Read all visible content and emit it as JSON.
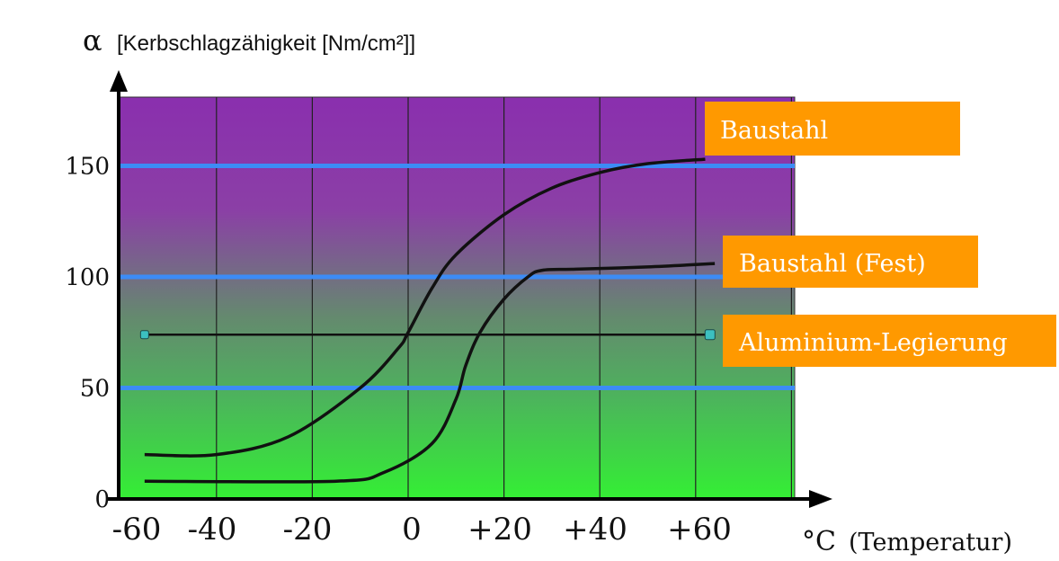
{
  "chart_data": {
    "type": "line",
    "ylabel_symbol": "α",
    "ylabel": "[Kerbschlagzähigkeit [Nm/cm²]]",
    "xlabel_unit": "°C",
    "xlabel": "(Temperatur)",
    "x_ticks": [
      "-60",
      "-40",
      "-20",
      "0",
      "+20",
      "+40",
      "+60"
    ],
    "y_ticks": [
      "0",
      "50",
      "100",
      "150"
    ],
    "xlim": [
      -60,
      80
    ],
    "ylim": [
      0,
      180
    ],
    "y_gridlines": [
      50,
      100,
      150
    ],
    "grid": true,
    "colors": {
      "background_top": "#8a2fae",
      "background_bottom": "#34ef34",
      "gridline": "#3c8cf5",
      "vertical_grid": "#222222",
      "curve": "#111111",
      "label_box": "#ff9900",
      "marker": "#3cc0c0"
    },
    "series": [
      {
        "name": "Baustahl",
        "x": [
          -55,
          -40,
          -25,
          -10,
          -2,
          0,
          5,
          10,
          20,
          30,
          40,
          50,
          62
        ],
        "y": [
          20,
          20,
          28,
          50,
          68,
          75,
          95,
          110,
          128,
          140,
          147,
          151,
          153
        ]
      },
      {
        "name": "Baustahl (Fest)",
        "x": [
          -55,
          -15,
          -5,
          5,
          10,
          12,
          15,
          20,
          25,
          28,
          35,
          50,
          64
        ],
        "y": [
          8,
          8,
          12,
          25,
          45,
          60,
          75,
          90,
          100,
          103,
          103.5,
          104.5,
          106
        ]
      },
      {
        "name": "Aluminium-Legierung",
        "x": [
          -55,
          63
        ],
        "y": [
          74,
          74
        ]
      }
    ]
  }
}
